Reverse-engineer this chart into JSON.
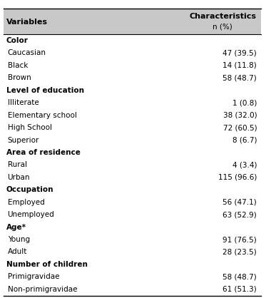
{
  "title_top": "Characteristics",
  "title_sub": "n (%)",
  "col1_header": "Variables",
  "rows": [
    {
      "label": "Color",
      "value": "",
      "bold": true,
      "indent": false
    },
    {
      "label": "Caucasian",
      "value": "47 (39.5)",
      "bold": false,
      "indent": true
    },
    {
      "label": "Black",
      "value": "14 (11.8)",
      "bold": false,
      "indent": true
    },
    {
      "label": "Brown",
      "value": "58 (48.7)",
      "bold": false,
      "indent": true
    },
    {
      "label": "Level of education",
      "value": "",
      "bold": true,
      "indent": false
    },
    {
      "label": "Illiterate",
      "value": "1 (0.8)",
      "bold": false,
      "indent": true
    },
    {
      "label": "Elementary school",
      "value": "38 (32.0)",
      "bold": false,
      "indent": true
    },
    {
      "label": "High School",
      "value": "72 (60.5)",
      "bold": false,
      "indent": true
    },
    {
      "label": "Superior",
      "value": "8 (6.7)",
      "bold": false,
      "indent": true
    },
    {
      "label": "Area of residence",
      "value": "",
      "bold": true,
      "indent": false
    },
    {
      "label": "Rural",
      "value": "4 (3.4)",
      "bold": false,
      "indent": true
    },
    {
      "label": "Urban",
      "value": "115 (96.6)",
      "bold": false,
      "indent": true
    },
    {
      "label": "Occupation",
      "value": "",
      "bold": true,
      "indent": false
    },
    {
      "label": "Employed",
      "value": "56 (47.1)",
      "bold": false,
      "indent": true
    },
    {
      "label": "Unemployed",
      "value": "63 (52.9)",
      "bold": false,
      "indent": true
    },
    {
      "label": "Age*",
      "value": "",
      "bold": true,
      "indent": false
    },
    {
      "label": "Young",
      "value": "91 (76.5)",
      "bold": false,
      "indent": true
    },
    {
      "label": "Adult",
      "value": "28 (23.5)",
      "bold": false,
      "indent": true
    },
    {
      "label": "Number of children",
      "value": "",
      "bold": true,
      "indent": false
    },
    {
      "label": "Primigravidae",
      "value": "58 (48.7)",
      "bold": false,
      "indent": true
    },
    {
      "label": "Non-primigravidae",
      "value": "61 (51.3)",
      "bold": false,
      "indent": true
    }
  ],
  "bg_color": "#ffffff",
  "header_text_color": "#000000",
  "row_text_color": "#000000",
  "font_size": 7.5,
  "header_font_size": 8.0,
  "line_color": "#000000",
  "header_bg_color": "#c8c8c8"
}
